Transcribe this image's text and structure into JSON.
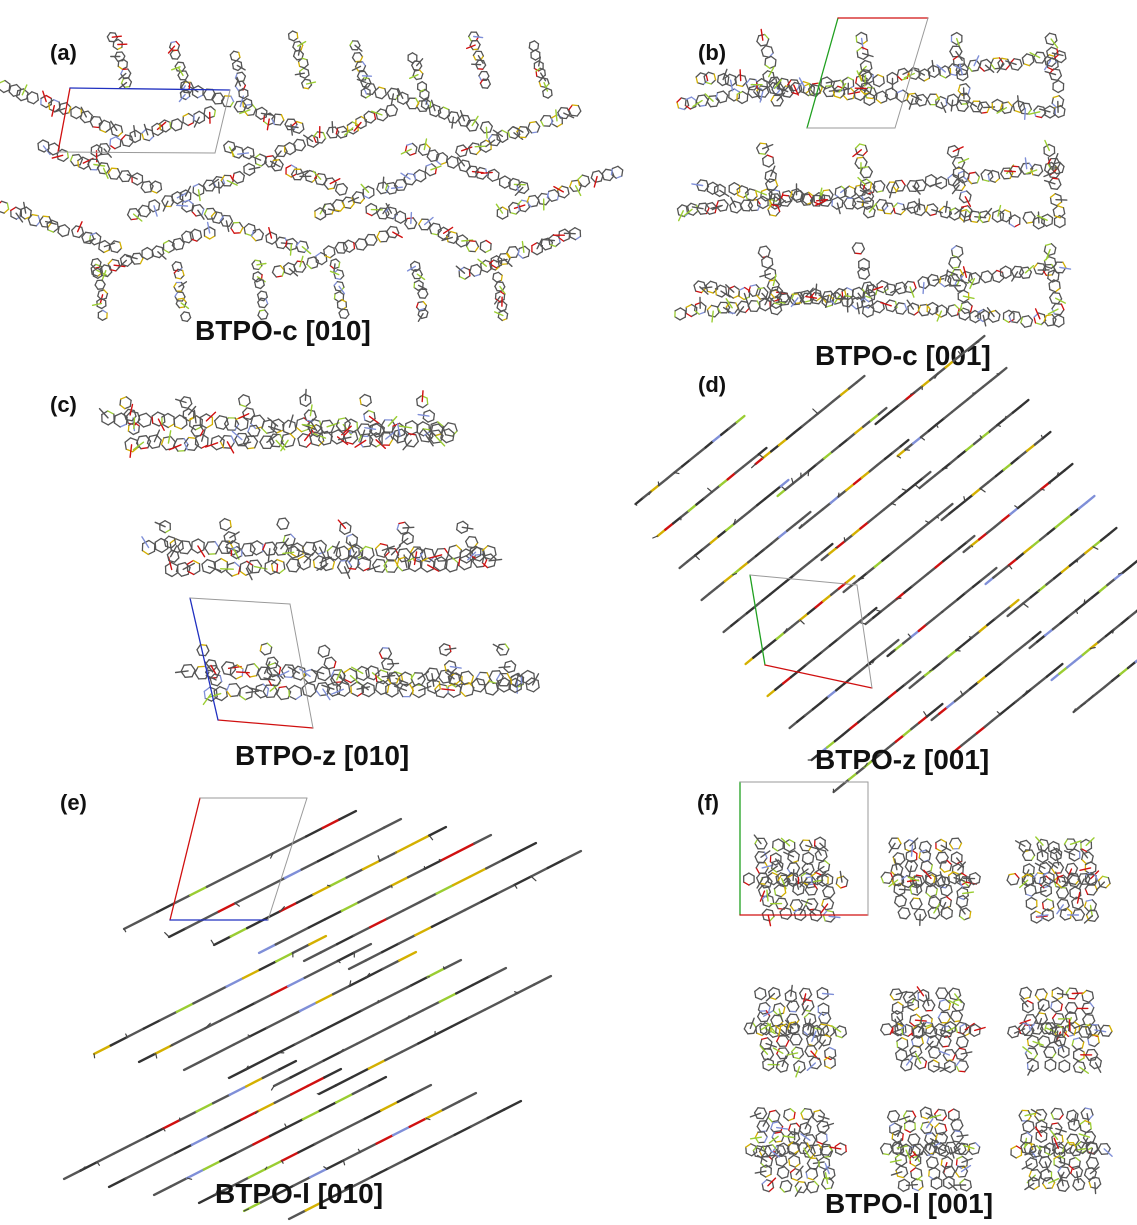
{
  "panels": [
    {
      "id": "a",
      "label": "(a)",
      "title": "BTPO-c [010]",
      "view": "herringbone"
    },
    {
      "id": "b",
      "label": "(b)",
      "title": "BTPO-c [001]",
      "view": "stacked-columns"
    },
    {
      "id": "c",
      "label": "(c)",
      "title": "BTPO-z [010]",
      "view": "horizontal-layers"
    },
    {
      "id": "d",
      "label": "(d)",
      "title": "BTPO-z [001]",
      "view": "diagonal-lines"
    },
    {
      "id": "e",
      "label": "(e)",
      "title": "BTPO-l [010]",
      "view": "diagonal-layers"
    },
    {
      "id": "f",
      "label": "(f)",
      "title": "BTPO-l [001]",
      "view": "grid-3x3"
    }
  ],
  "colors": {
    "carbon": "#555555",
    "sulfur": "#d4b000",
    "oxygen": "#d01010",
    "nitrogen": "#7f8fd8",
    "fluorine": "#9acd32",
    "cell_a": "#d01010",
    "cell_b": "#20a020",
    "cell_c": "#2030c0",
    "cell_edge": "#9a9a9a"
  }
}
